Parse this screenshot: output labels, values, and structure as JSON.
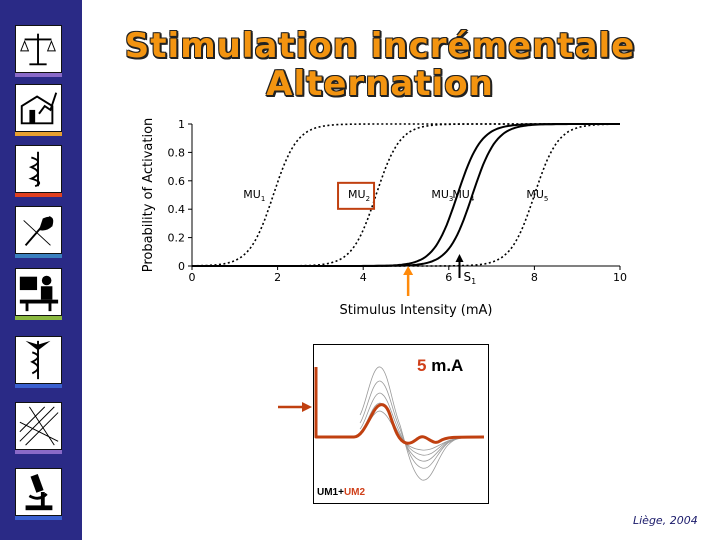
{
  "title": {
    "line1": "Stimulation incrémentale",
    "line2": "Alternation"
  },
  "sidebar": {
    "icons": [
      "scales-icon",
      "building-chart-icon",
      "caduceus-icon",
      "quill-icon",
      "teacher-icon",
      "medical-symbol-icon",
      "network-icon",
      "microscope-icon"
    ]
  },
  "chart_data": {
    "type": "line",
    "xlabel": "Stimulus Intensity (mA)",
    "ylabel": "Probability of Activation",
    "xlim": [
      0,
      10
    ],
    "ylim": [
      0,
      1
    ],
    "x_ticks": [
      "0",
      "2",
      "4",
      "6",
      "8",
      "10"
    ],
    "y_ticks": [
      "0",
      "0.2",
      "0.4",
      "0.6",
      "0.8",
      "1"
    ],
    "series": [
      {
        "name": "MU1",
        "midpoint": 1.9,
        "style": "dotted"
      },
      {
        "name": "MU2",
        "midpoint": 4.3,
        "style": "dotted"
      },
      {
        "name": "MU3",
        "midpoint": 6.2,
        "style": "solid"
      },
      {
        "name": "MU4",
        "midpoint": 6.55,
        "style": "solid"
      },
      {
        "name": "MU5",
        "midpoint": 8.0,
        "style": "dotted"
      }
    ],
    "annotations": {
      "s1_label": "S1",
      "s1_x": 6.25,
      "arrow_x": 5.05,
      "highlight": "MU2"
    }
  },
  "stim_label": {
    "value": "5",
    "unit": "m.A"
  },
  "trace_label": {
    "um1": "UM1+",
    "um2": "UM2"
  },
  "footer": "Liège, 2004",
  "colors": {
    "sidebar": "#2a2a86",
    "title": "#f39410",
    "accent": "#c04010",
    "marker": "#ff8a0a"
  }
}
